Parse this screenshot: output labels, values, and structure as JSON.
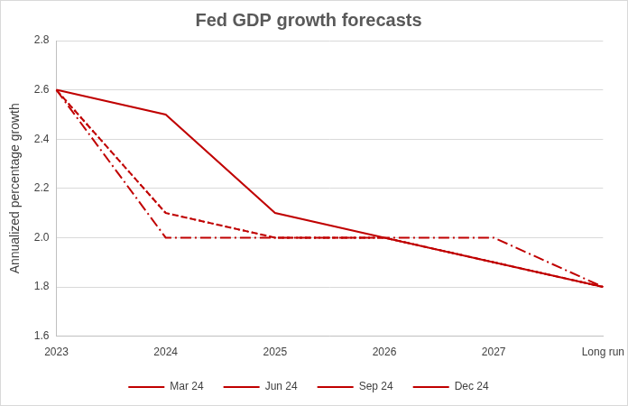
{
  "chart_data": {
    "type": "line",
    "title": "Fed GDP growth forecasts",
    "y_label": "Annualized percentage growth",
    "categories": [
      "2023",
      "2024",
      "2025",
      "2026",
      "2027",
      "Long run"
    ],
    "series": [
      {
        "name": "Mar 24",
        "color": "#c00000",
        "line_style": "dotted",
        "values": [
          2.6,
          2.1,
          2.0,
          2.0,
          1.9,
          1.8
        ]
      },
      {
        "name": "Jun 24",
        "color": "#c00000",
        "line_style": "dashed",
        "values": [
          2.6,
          2.1,
          2.0,
          2.0,
          1.9,
          1.8
        ]
      },
      {
        "name": "Sep 24",
        "color": "#c00000",
        "line_style": "dashdot",
        "values": [
          2.6,
          2.0,
          2.0,
          2.0,
          2.0,
          1.8
        ]
      },
      {
        "name": "Dec 24",
        "color": "#c00000",
        "line_style": "solid",
        "values": [
          2.6,
          2.5,
          2.1,
          2.0,
          1.9,
          1.8
        ]
      }
    ],
    "ylim": [
      1.6,
      2.8
    ],
    "yticks": [
      1.6,
      1.8,
      {
        "value": 2,
        "label": "2.0"
      },
      2.2,
      2.4,
      2.6,
      2.8
    ],
    "grid": true,
    "legend": "bottom",
    "marker": "none"
  }
}
